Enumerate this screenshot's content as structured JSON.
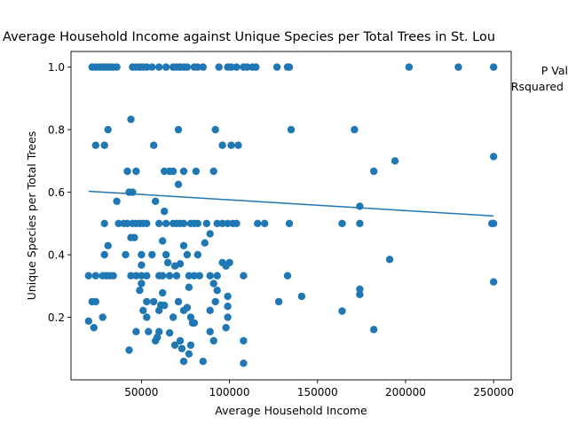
{
  "chart_data": {
    "type": "scatter",
    "title": "Average Household Income against Unique Species per Total Trees in St. Lou",
    "xlabel": "Average Household Income",
    "ylabel": "Unique Species per Total Trees",
    "xlim": [
      10000,
      260000
    ],
    "ylim": [
      0.0,
      1.05
    ],
    "x_ticks": [
      50000,
      100000,
      150000,
      200000,
      250000
    ],
    "y_ticks": [
      0.2,
      0.4,
      0.6,
      0.8,
      1.0
    ],
    "x_tick_labels": [
      "50000",
      "100000",
      "150000",
      "200000",
      "250000"
    ],
    "y_tick_labels": [
      "0.2",
      "0.4",
      "0.6",
      "0.8",
      "1.0"
    ],
    "grid": false,
    "annotations": [
      "P Val",
      "Rsquared"
    ],
    "color": "#1f77b4",
    "trendline": {
      "x": [
        20000,
        250000
      ],
      "y": [
        0.603,
        0.524
      ]
    },
    "points": [
      [
        22000,
        1.0
      ],
      [
        24000,
        1.0
      ],
      [
        26000,
        1.0
      ],
      [
        27500,
        1.0
      ],
      [
        29000,
        1.0
      ],
      [
        30500,
        1.0
      ],
      [
        32000,
        1.0
      ],
      [
        34000,
        1.0
      ],
      [
        36000,
        1.0
      ],
      [
        45000,
        1.0
      ],
      [
        47000,
        1.0
      ],
      [
        49000,
        1.0
      ],
      [
        51000,
        1.0
      ],
      [
        53000,
        1.0
      ],
      [
        56000,
        1.0
      ],
      [
        60000,
        1.0
      ],
      [
        64000,
        1.0
      ],
      [
        68000,
        1.0
      ],
      [
        70000,
        1.0
      ],
      [
        72000,
        1.0
      ],
      [
        74000,
        1.0
      ],
      [
        76000,
        1.0
      ],
      [
        80000,
        1.0
      ],
      [
        82000,
        1.0
      ],
      [
        85000,
        1.0
      ],
      [
        94000,
        1.0
      ],
      [
        99000,
        1.0
      ],
      [
        101000,
        1.0
      ],
      [
        104000,
        1.0
      ],
      [
        108000,
        1.0
      ],
      [
        110000,
        1.0
      ],
      [
        113000,
        1.0
      ],
      [
        115000,
        1.0
      ],
      [
        127000,
        1.0
      ],
      [
        133000,
        1.0
      ],
      [
        134000,
        1.0
      ],
      [
        202000,
        1.0
      ],
      [
        230000,
        1.0
      ],
      [
        250000,
        1.0
      ],
      [
        44000,
        0.833
      ],
      [
        24000,
        0.75
      ],
      [
        29000,
        0.75
      ],
      [
        31000,
        0.8
      ],
      [
        57000,
        0.75
      ],
      [
        71000,
        0.8
      ],
      [
        92000,
        0.8
      ],
      [
        96000,
        0.75
      ],
      [
        101000,
        0.75
      ],
      [
        105000,
        0.75
      ],
      [
        135000,
        0.8
      ],
      [
        171000,
        0.8
      ],
      [
        250000,
        0.714
      ],
      [
        194000,
        0.7
      ],
      [
        182000,
        0.667
      ],
      [
        42000,
        0.667
      ],
      [
        47000,
        0.667
      ],
      [
        63000,
        0.667
      ],
      [
        66000,
        0.667
      ],
      [
        68000,
        0.667
      ],
      [
        74000,
        0.667
      ],
      [
        81000,
        0.667
      ],
      [
        91000,
        0.667
      ],
      [
        71000,
        0.625
      ],
      [
        43000,
        0.6
      ],
      [
        45000,
        0.6
      ],
      [
        36000,
        0.571
      ],
      [
        58000,
        0.571
      ],
      [
        63000,
        0.539
      ],
      [
        174000,
        0.555
      ],
      [
        29000,
        0.5
      ],
      [
        37000,
        0.5
      ],
      [
        40000,
        0.5
      ],
      [
        42000,
        0.5
      ],
      [
        45000,
        0.5
      ],
      [
        47000,
        0.5
      ],
      [
        49000,
        0.5
      ],
      [
        51000,
        0.5
      ],
      [
        53000,
        0.5
      ],
      [
        60000,
        0.5
      ],
      [
        64000,
        0.5
      ],
      [
        68000,
        0.5
      ],
      [
        70000,
        0.5
      ],
      [
        72000,
        0.5
      ],
      [
        74000,
        0.5
      ],
      [
        78000,
        0.5
      ],
      [
        80000,
        0.5
      ],
      [
        82000,
        0.5
      ],
      [
        87000,
        0.5
      ],
      [
        93000,
        0.5
      ],
      [
        96000,
        0.5
      ],
      [
        99000,
        0.5
      ],
      [
        102000,
        0.5
      ],
      [
        104000,
        0.5
      ],
      [
        116000,
        0.5
      ],
      [
        120000,
        0.5
      ],
      [
        134000,
        0.5
      ],
      [
        164000,
        0.5
      ],
      [
        174000,
        0.5
      ],
      [
        249000,
        0.5
      ],
      [
        250000,
        0.5
      ],
      [
        44000,
        0.455
      ],
      [
        46000,
        0.455
      ],
      [
        62000,
        0.444
      ],
      [
        86000,
        0.438
      ],
      [
        64000,
        0.4
      ],
      [
        74000,
        0.429
      ],
      [
        31000,
        0.429
      ],
      [
        89000,
        0.467
      ],
      [
        29000,
        0.4
      ],
      [
        41000,
        0.4
      ],
      [
        50000,
        0.4
      ],
      [
        56000,
        0.4
      ],
      [
        76000,
        0.4
      ],
      [
        82000,
        0.4
      ],
      [
        98000,
        0.364
      ],
      [
        100000,
        0.375
      ],
      [
        96000,
        0.375
      ],
      [
        65000,
        0.375
      ],
      [
        69000,
        0.364
      ],
      [
        72000,
        0.371
      ],
      [
        50000,
        0.367
      ],
      [
        191000,
        0.385
      ],
      [
        20000,
        0.333
      ],
      [
        24000,
        0.333
      ],
      [
        28000,
        0.333
      ],
      [
        30000,
        0.333
      ],
      [
        32000,
        0.333
      ],
      [
        34000,
        0.333
      ],
      [
        44000,
        0.333
      ],
      [
        47000,
        0.333
      ],
      [
        50000,
        0.333
      ],
      [
        53000,
        0.333
      ],
      [
        60000,
        0.333
      ],
      [
        62000,
        0.333
      ],
      [
        66000,
        0.333
      ],
      [
        70000,
        0.333
      ],
      [
        77000,
        0.333
      ],
      [
        80000,
        0.333
      ],
      [
        83000,
        0.333
      ],
      [
        89000,
        0.333
      ],
      [
        93000,
        0.333
      ],
      [
        108000,
        0.333
      ],
      [
        133000,
        0.333
      ],
      [
        174000,
        0.29
      ],
      [
        174000,
        0.273
      ],
      [
        250000,
        0.313
      ],
      [
        50000,
        0.308
      ],
      [
        91000,
        0.308
      ],
      [
        77000,
        0.296
      ],
      [
        49000,
        0.286
      ],
      [
        62000,
        0.278
      ],
      [
        93000,
        0.286
      ],
      [
        99000,
        0.267
      ],
      [
        141000,
        0.267
      ],
      [
        22000,
        0.25
      ],
      [
        24000,
        0.25
      ],
      [
        53000,
        0.25
      ],
      [
        57000,
        0.25
      ],
      [
        61000,
        0.239
      ],
      [
        71000,
        0.25
      ],
      [
        92000,
        0.25
      ],
      [
        99000,
        0.235
      ],
      [
        128000,
        0.25
      ],
      [
        51000,
        0.222
      ],
      [
        53000,
        0.2
      ],
      [
        60000,
        0.222
      ],
      [
        63000,
        0.238
      ],
      [
        68000,
        0.2
      ],
      [
        74000,
        0.222
      ],
      [
        76000,
        0.231
      ],
      [
        78000,
        0.2
      ],
      [
        80000,
        0.182
      ],
      [
        89000,
        0.222
      ],
      [
        99000,
        0.2
      ],
      [
        164000,
        0.22
      ],
      [
        28000,
        0.2
      ],
      [
        20000,
        0.188
      ],
      [
        23000,
        0.167
      ],
      [
        47000,
        0.154
      ],
      [
        54000,
        0.154
      ],
      [
        58000,
        0.125
      ],
      [
        59000,
        0.136
      ],
      [
        60000,
        0.154
      ],
      [
        66000,
        0.15
      ],
      [
        69000,
        0.111
      ],
      [
        72000,
        0.125
      ],
      [
        73000,
        0.1
      ],
      [
        78000,
        0.111
      ],
      [
        79000,
        0.182
      ],
      [
        89000,
        0.154
      ],
      [
        91000,
        0.125
      ],
      [
        98000,
        0.167
      ],
      [
        108000,
        0.125
      ],
      [
        182000,
        0.161
      ],
      [
        43000,
        0.095
      ],
      [
        74000,
        0.059
      ],
      [
        77000,
        0.083
      ],
      [
        85000,
        0.059
      ],
      [
        108000,
        0.053
      ]
    ]
  }
}
